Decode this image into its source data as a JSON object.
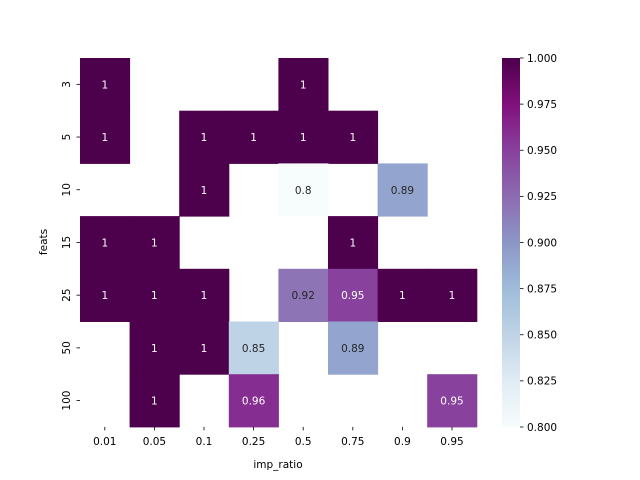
{
  "chart_data": {
    "type": "heatmap",
    "xlabel": "imp_ratio",
    "ylabel": "feats",
    "x_categories": [
      "0.01",
      "0.05",
      "0.1",
      "0.25",
      "0.5",
      "0.75",
      "0.9",
      "0.95"
    ],
    "y_categories": [
      "3",
      "5",
      "10",
      "15",
      "25",
      "50",
      "100"
    ],
    "values": [
      [
        1,
        null,
        null,
        null,
        1,
        null,
        null,
        null
      ],
      [
        1,
        null,
        1,
        1,
        1,
        1,
        null,
        null
      ],
      [
        null,
        null,
        1,
        null,
        0.8,
        null,
        0.89,
        null
      ],
      [
        1,
        1,
        null,
        null,
        null,
        1,
        null,
        null
      ],
      [
        1,
        1,
        1,
        null,
        0.92,
        0.95,
        1,
        1
      ],
      [
        null,
        1,
        1,
        0.85,
        null,
        0.89,
        null,
        null
      ],
      [
        null,
        1,
        null,
        0.96,
        null,
        null,
        null,
        0.95
      ]
    ],
    "cell_labels": [
      [
        "1",
        "",
        "",
        "",
        "1",
        "",
        "",
        ""
      ],
      [
        "1",
        "",
        "1",
        "1",
        "1",
        "1",
        "",
        ""
      ],
      [
        "",
        "",
        "1",
        "",
        "0.8",
        "",
        "0.89",
        ""
      ],
      [
        "1",
        "1",
        "",
        "",
        "",
        "1",
        "",
        ""
      ],
      [
        "1",
        "1",
        "1",
        "",
        "0.92",
        "0.95",
        "1",
        "1"
      ],
      [
        "",
        "1",
        "1",
        "0.85",
        "",
        "0.89",
        "",
        ""
      ],
      [
        "",
        "1",
        "",
        "0.96",
        "",
        "",
        "",
        "0.95"
      ]
    ],
    "colorbar": {
      "vmin": 0.8,
      "vmax": 1.0,
      "ticks": [
        "0.800",
        "0.825",
        "0.850",
        "0.875",
        "0.900",
        "0.925",
        "0.950",
        "0.975",
        "1.000"
      ],
      "colormap": "BuPu",
      "color_stops": [
        "#f7fcfd",
        "#e0ecf4",
        "#bfd3e6",
        "#9ebcda",
        "#8c96c6",
        "#8c6bb1",
        "#88419d",
        "#810f7c",
        "#4d004b"
      ]
    }
  }
}
